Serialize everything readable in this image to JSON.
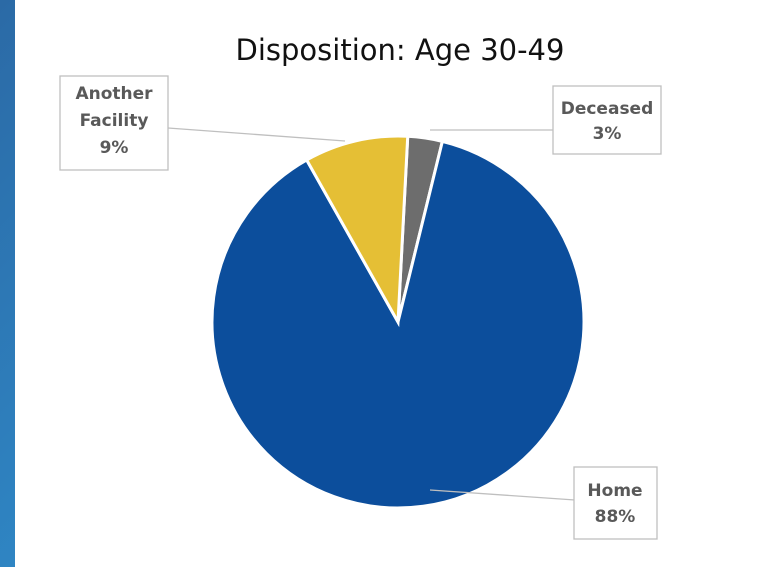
{
  "chart_data": {
    "type": "pie",
    "title": "Disposition: Age 30-49",
    "categories": [
      "Deceased",
      "Home",
      "Another Facility"
    ],
    "values": [
      3,
      88,
      9
    ],
    "value_labels": [
      "3%",
      "88%",
      "9%"
    ],
    "colors": [
      "#6d6d6d",
      "#0c4e9c",
      "#e5bf35"
    ],
    "start_angle_deg": 3,
    "legend": "none",
    "data_labels": "callouts"
  }
}
